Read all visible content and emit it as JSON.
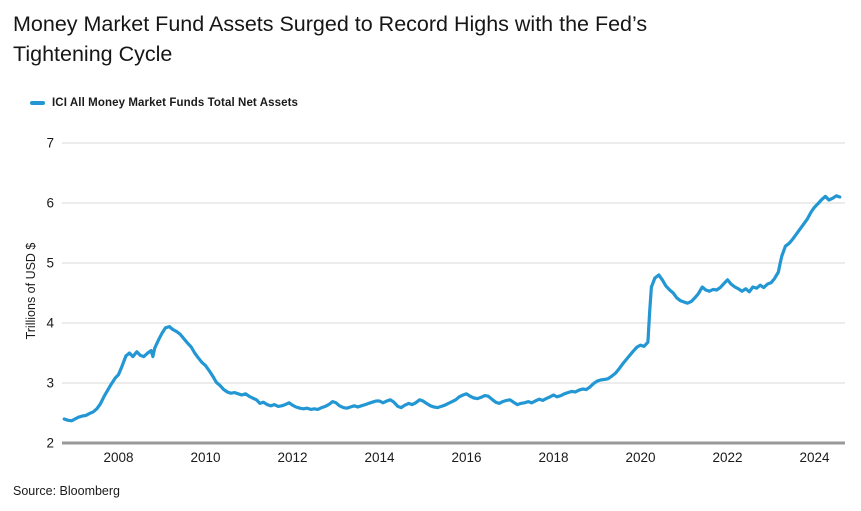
{
  "title": "Money Market Fund Assets Surged to Record Highs with the Fed’s Tightening Cycle",
  "legend": {
    "label": "ICI All Money Market Funds Total Net Assets"
  },
  "source": "Source: Bloomberg",
  "colors": {
    "line": "#2397d4",
    "grid": "#d8d8d8",
    "axis": "#999999",
    "text": "#1a1a1a"
  },
  "chart_data": {
    "type": "line",
    "title": "Money Market Fund Assets Surged to Record Highs with the Fed’s Tightening Cycle",
    "xlabel": "",
    "ylabel": "Trillions of USD $",
    "xlim": [
      2006.7,
      2024.7
    ],
    "ylim": [
      2,
      7
    ],
    "y_ticks": [
      2,
      3,
      4,
      5,
      6,
      7
    ],
    "x_ticks": [
      2008,
      2010,
      2012,
      2014,
      2016,
      2018,
      2020,
      2022,
      2024
    ],
    "grid": "horizontal",
    "legend_position": "top-left",
    "series": [
      {
        "name": "ICI All Money Market Funds Total Net Assets",
        "color": "#2397d4",
        "points": [
          [
            2006.75,
            2.4
          ],
          [
            2006.83,
            2.38
          ],
          [
            2006.92,
            2.37
          ],
          [
            2007.0,
            2.4
          ],
          [
            2007.08,
            2.43
          ],
          [
            2007.17,
            2.45
          ],
          [
            2007.25,
            2.46
          ],
          [
            2007.33,
            2.49
          ],
          [
            2007.42,
            2.52
          ],
          [
            2007.5,
            2.57
          ],
          [
            2007.58,
            2.65
          ],
          [
            2007.67,
            2.78
          ],
          [
            2007.75,
            2.88
          ],
          [
            2007.83,
            2.98
          ],
          [
            2007.92,
            3.08
          ],
          [
            2008.0,
            3.14
          ],
          [
            2008.08,
            3.28
          ],
          [
            2008.17,
            3.45
          ],
          [
            2008.25,
            3.5
          ],
          [
            2008.33,
            3.44
          ],
          [
            2008.42,
            3.52
          ],
          [
            2008.5,
            3.46
          ],
          [
            2008.58,
            3.44
          ],
          [
            2008.67,
            3.5
          ],
          [
            2008.75,
            3.54
          ],
          [
            2008.79,
            3.44
          ],
          [
            2008.83,
            3.58
          ],
          [
            2008.92,
            3.72
          ],
          [
            2009.0,
            3.83
          ],
          [
            2009.08,
            3.92
          ],
          [
            2009.17,
            3.94
          ],
          [
            2009.25,
            3.89
          ],
          [
            2009.33,
            3.86
          ],
          [
            2009.42,
            3.81
          ],
          [
            2009.5,
            3.74
          ],
          [
            2009.58,
            3.67
          ],
          [
            2009.67,
            3.6
          ],
          [
            2009.75,
            3.5
          ],
          [
            2009.83,
            3.42
          ],
          [
            2009.92,
            3.34
          ],
          [
            2010.0,
            3.29
          ],
          [
            2010.08,
            3.21
          ],
          [
            2010.17,
            3.11
          ],
          [
            2010.25,
            3.01
          ],
          [
            2010.33,
            2.96
          ],
          [
            2010.42,
            2.89
          ],
          [
            2010.5,
            2.85
          ],
          [
            2010.58,
            2.83
          ],
          [
            2010.67,
            2.84
          ],
          [
            2010.75,
            2.82
          ],
          [
            2010.83,
            2.8
          ],
          [
            2010.92,
            2.82
          ],
          [
            2011.0,
            2.78
          ],
          [
            2011.08,
            2.75
          ],
          [
            2011.17,
            2.72
          ],
          [
            2011.25,
            2.66
          ],
          [
            2011.33,
            2.68
          ],
          [
            2011.42,
            2.64
          ],
          [
            2011.5,
            2.62
          ],
          [
            2011.58,
            2.64
          ],
          [
            2011.67,
            2.61
          ],
          [
            2011.75,
            2.62
          ],
          [
            2011.83,
            2.64
          ],
          [
            2011.92,
            2.67
          ],
          [
            2012.0,
            2.63
          ],
          [
            2012.08,
            2.6
          ],
          [
            2012.17,
            2.58
          ],
          [
            2012.25,
            2.57
          ],
          [
            2012.33,
            2.58
          ],
          [
            2012.42,
            2.56
          ],
          [
            2012.5,
            2.57
          ],
          [
            2012.58,
            2.56
          ],
          [
            2012.67,
            2.59
          ],
          [
            2012.75,
            2.61
          ],
          [
            2012.83,
            2.64
          ],
          [
            2012.92,
            2.69
          ],
          [
            2013.0,
            2.67
          ],
          [
            2013.08,
            2.62
          ],
          [
            2013.17,
            2.59
          ],
          [
            2013.25,
            2.58
          ],
          [
            2013.33,
            2.6
          ],
          [
            2013.42,
            2.62
          ],
          [
            2013.5,
            2.6
          ],
          [
            2013.58,
            2.62
          ],
          [
            2013.67,
            2.64
          ],
          [
            2013.75,
            2.66
          ],
          [
            2013.83,
            2.68
          ],
          [
            2013.92,
            2.7
          ],
          [
            2014.0,
            2.7
          ],
          [
            2014.08,
            2.67
          ],
          [
            2014.17,
            2.7
          ],
          [
            2014.25,
            2.72
          ],
          [
            2014.33,
            2.68
          ],
          [
            2014.42,
            2.61
          ],
          [
            2014.5,
            2.59
          ],
          [
            2014.58,
            2.63
          ],
          [
            2014.67,
            2.66
          ],
          [
            2014.75,
            2.64
          ],
          [
            2014.83,
            2.67
          ],
          [
            2014.92,
            2.72
          ],
          [
            2015.0,
            2.7
          ],
          [
            2015.08,
            2.66
          ],
          [
            2015.17,
            2.62
          ],
          [
            2015.25,
            2.6
          ],
          [
            2015.33,
            2.59
          ],
          [
            2015.42,
            2.61
          ],
          [
            2015.5,
            2.63
          ],
          [
            2015.58,
            2.66
          ],
          [
            2015.67,
            2.69
          ],
          [
            2015.75,
            2.72
          ],
          [
            2015.83,
            2.77
          ],
          [
            2015.92,
            2.8
          ],
          [
            2016.0,
            2.82
          ],
          [
            2016.08,
            2.78
          ],
          [
            2016.17,
            2.75
          ],
          [
            2016.25,
            2.74
          ],
          [
            2016.33,
            2.76
          ],
          [
            2016.42,
            2.79
          ],
          [
            2016.5,
            2.78
          ],
          [
            2016.58,
            2.73
          ],
          [
            2016.67,
            2.68
          ],
          [
            2016.75,
            2.66
          ],
          [
            2016.83,
            2.69
          ],
          [
            2016.92,
            2.71
          ],
          [
            2017.0,
            2.72
          ],
          [
            2017.08,
            2.68
          ],
          [
            2017.17,
            2.64
          ],
          [
            2017.25,
            2.66
          ],
          [
            2017.33,
            2.67
          ],
          [
            2017.42,
            2.69
          ],
          [
            2017.5,
            2.67
          ],
          [
            2017.58,
            2.7
          ],
          [
            2017.67,
            2.73
          ],
          [
            2017.75,
            2.71
          ],
          [
            2017.83,
            2.74
          ],
          [
            2017.92,
            2.77
          ],
          [
            2018.0,
            2.8
          ],
          [
            2018.08,
            2.77
          ],
          [
            2018.17,
            2.79
          ],
          [
            2018.25,
            2.82
          ],
          [
            2018.33,
            2.84
          ],
          [
            2018.42,
            2.86
          ],
          [
            2018.5,
            2.85
          ],
          [
            2018.58,
            2.88
          ],
          [
            2018.67,
            2.9
          ],
          [
            2018.75,
            2.89
          ],
          [
            2018.83,
            2.93
          ],
          [
            2018.92,
            2.99
          ],
          [
            2019.0,
            3.03
          ],
          [
            2019.08,
            3.05
          ],
          [
            2019.17,
            3.06
          ],
          [
            2019.25,
            3.07
          ],
          [
            2019.33,
            3.11
          ],
          [
            2019.42,
            3.16
          ],
          [
            2019.5,
            3.23
          ],
          [
            2019.58,
            3.31
          ],
          [
            2019.67,
            3.39
          ],
          [
            2019.75,
            3.46
          ],
          [
            2019.83,
            3.53
          ],
          [
            2019.92,
            3.6
          ],
          [
            2020.0,
            3.63
          ],
          [
            2020.08,
            3.61
          ],
          [
            2020.17,
            3.68
          ],
          [
            2020.21,
            4.2
          ],
          [
            2020.25,
            4.6
          ],
          [
            2020.33,
            4.75
          ],
          [
            2020.42,
            4.8
          ],
          [
            2020.5,
            4.72
          ],
          [
            2020.58,
            4.62
          ],
          [
            2020.67,
            4.55
          ],
          [
            2020.75,
            4.5
          ],
          [
            2020.83,
            4.42
          ],
          [
            2020.92,
            4.37
          ],
          [
            2021.0,
            4.35
          ],
          [
            2021.08,
            4.33
          ],
          [
            2021.17,
            4.36
          ],
          [
            2021.25,
            4.42
          ],
          [
            2021.33,
            4.49
          ],
          [
            2021.42,
            4.6
          ],
          [
            2021.5,
            4.55
          ],
          [
            2021.58,
            4.53
          ],
          [
            2021.67,
            4.56
          ],
          [
            2021.75,
            4.55
          ],
          [
            2021.83,
            4.59
          ],
          [
            2021.92,
            4.66
          ],
          [
            2022.0,
            4.72
          ],
          [
            2022.08,
            4.65
          ],
          [
            2022.17,
            4.6
          ],
          [
            2022.25,
            4.57
          ],
          [
            2022.33,
            4.53
          ],
          [
            2022.42,
            4.57
          ],
          [
            2022.5,
            4.52
          ],
          [
            2022.58,
            4.6
          ],
          [
            2022.67,
            4.58
          ],
          [
            2022.75,
            4.63
          ],
          [
            2022.83,
            4.59
          ],
          [
            2022.92,
            4.65
          ],
          [
            2023.0,
            4.67
          ],
          [
            2023.08,
            4.74
          ],
          [
            2023.17,
            4.85
          ],
          [
            2023.21,
            5.0
          ],
          [
            2023.25,
            5.12
          ],
          [
            2023.33,
            5.28
          ],
          [
            2023.42,
            5.33
          ],
          [
            2023.5,
            5.4
          ],
          [
            2023.58,
            5.48
          ],
          [
            2023.67,
            5.57
          ],
          [
            2023.75,
            5.65
          ],
          [
            2023.83,
            5.73
          ],
          [
            2023.92,
            5.85
          ],
          [
            2024.0,
            5.93
          ],
          [
            2024.08,
            5.99
          ],
          [
            2024.17,
            6.06
          ],
          [
            2024.25,
            6.11
          ],
          [
            2024.33,
            6.05
          ],
          [
            2024.42,
            6.08
          ],
          [
            2024.5,
            6.12
          ],
          [
            2024.58,
            6.1
          ]
        ]
      }
    ]
  }
}
